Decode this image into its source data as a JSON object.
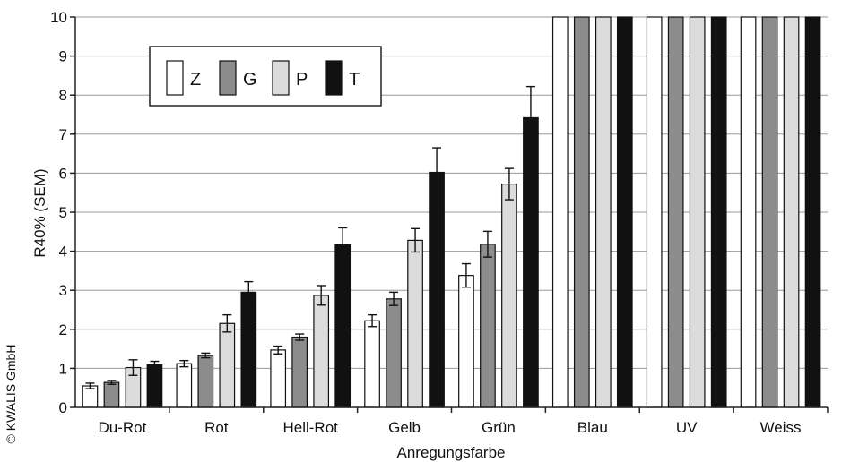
{
  "copyright": "© KWALIS GmbH",
  "chart_data": {
    "type": "bar",
    "title": "",
    "xlabel": "Anregungsfarbe",
    "ylabel": "R40%  (SEM)",
    "ylim": [
      0,
      10
    ],
    "yticks": [
      "0",
      "1",
      "2",
      "3",
      "4",
      "5",
      "6",
      "7",
      "8",
      "9",
      "10"
    ],
    "grid": true,
    "legend_placement": "top-left",
    "categories": [
      "Du-Rot",
      "Rot",
      "Hell-Rot",
      "Gelb",
      "Grün",
      "Blau",
      "UV",
      "Weiss"
    ],
    "series": [
      {
        "name": "Z",
        "color": "#ffffff",
        "values": [
          0.55,
          1.12,
          1.47,
          2.22,
          3.38,
          10,
          10,
          10
        ],
        "errors": [
          0.07,
          0.08,
          0.1,
          0.15,
          0.3,
          0,
          0,
          0
        ]
      },
      {
        "name": "G",
        "color": "#8c8c8c",
        "values": [
          0.64,
          1.33,
          1.8,
          2.78,
          4.18,
          10,
          10,
          10
        ],
        "errors": [
          0.05,
          0.06,
          0.08,
          0.17,
          0.33,
          0,
          0,
          0
        ]
      },
      {
        "name": "P",
        "color": "#dcdcdc",
        "values": [
          1.02,
          2.15,
          2.87,
          4.28,
          5.72,
          10,
          10,
          10
        ],
        "errors": [
          0.2,
          0.22,
          0.25,
          0.3,
          0.4,
          0,
          0,
          0
        ]
      },
      {
        "name": "T",
        "color": "#111111",
        "values": [
          1.1,
          2.95,
          4.17,
          6.02,
          7.42,
          10,
          10,
          10
        ],
        "errors": [
          0.08,
          0.27,
          0.43,
          0.63,
          0.8,
          0,
          0,
          0
        ]
      }
    ]
  }
}
